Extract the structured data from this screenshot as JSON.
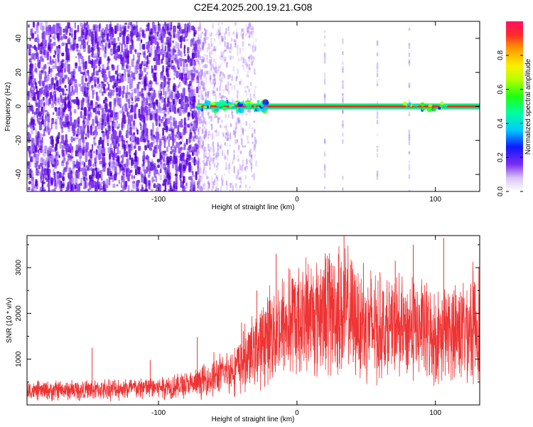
{
  "title": "C2E4.2025.200.19.21.G08",
  "chart_data": [
    {
      "type": "heatmap",
      "xlabel": "Height of straight line (km)",
      "ylabel": "Frequency (Hz)",
      "xlim": [
        -195,
        132
      ],
      "ylim": [
        -50,
        50
      ],
      "x_ticks": [
        -100,
        0,
        100
      ],
      "y_ticks": [
        -40,
        -20,
        0,
        20,
        40
      ],
      "colorbar": {
        "label": "Normalized spectral amplitude",
        "range": [
          0,
          1
        ],
        "ticks": [
          0,
          0.2,
          0.4,
          0.6,
          0.8
        ]
      },
      "carrier_frequency_hz": 0,
      "noise_region_x_range": [
        -195,
        -72
      ],
      "clean_tone_x_range": [
        -72,
        132
      ],
      "bright_vertical_streak_x": [
        20,
        33,
        58,
        81
      ]
    },
    {
      "type": "line",
      "xlabel": "Height of straight line (km)",
      "ylabel": "SNR (10 * v/v)",
      "xlim": [
        -195,
        132
      ],
      "ylim": [
        0,
        3700
      ],
      "x_ticks": [
        -100,
        0,
        100
      ],
      "y_ticks": [
        1000,
        2000,
        3000
      ],
      "series": [
        {
          "color": "#ee3333",
          "mean_trend": [
            [
              -195,
              300
            ],
            [
              -150,
              330
            ],
            [
              -110,
              370
            ],
            [
              -75,
              440
            ],
            [
              -60,
              600
            ],
            [
              -45,
              800
            ],
            [
              -30,
              1200
            ],
            [
              -20,
              1550
            ],
            [
              -10,
              1700
            ],
            [
              0,
              1850
            ],
            [
              10,
              1980
            ],
            [
              20,
              2100
            ],
            [
              30,
              2080
            ],
            [
              40,
              1950
            ],
            [
              50,
              1750
            ],
            [
              60,
              1650
            ],
            [
              70,
              1650
            ],
            [
              80,
              1680
            ],
            [
              90,
              1650
            ],
            [
              100,
              1500
            ],
            [
              110,
              1550
            ],
            [
              120,
              1700
            ],
            [
              132,
              1820
            ]
          ],
          "peaks": [
            [
              -148,
              1250
            ],
            [
              -106,
              980
            ],
            [
              -72,
              1480
            ],
            [
              -60,
              1150
            ],
            [
              -40,
              1800
            ],
            [
              -29,
              2500
            ],
            [
              -15,
              3300
            ],
            [
              -2,
              2450
            ],
            [
              15,
              2350
            ],
            [
              25,
              3100
            ],
            [
              30,
              3300
            ],
            [
              34,
              3700
            ],
            [
              48,
              3100
            ],
            [
              60,
              2900
            ],
            [
              71,
              3150
            ],
            [
              84,
              3500
            ],
            [
              90,
              2600
            ],
            [
              106,
              3650
            ],
            [
              115,
              2400
            ],
            [
              128,
              2500
            ]
          ]
        }
      ]
    }
  ]
}
